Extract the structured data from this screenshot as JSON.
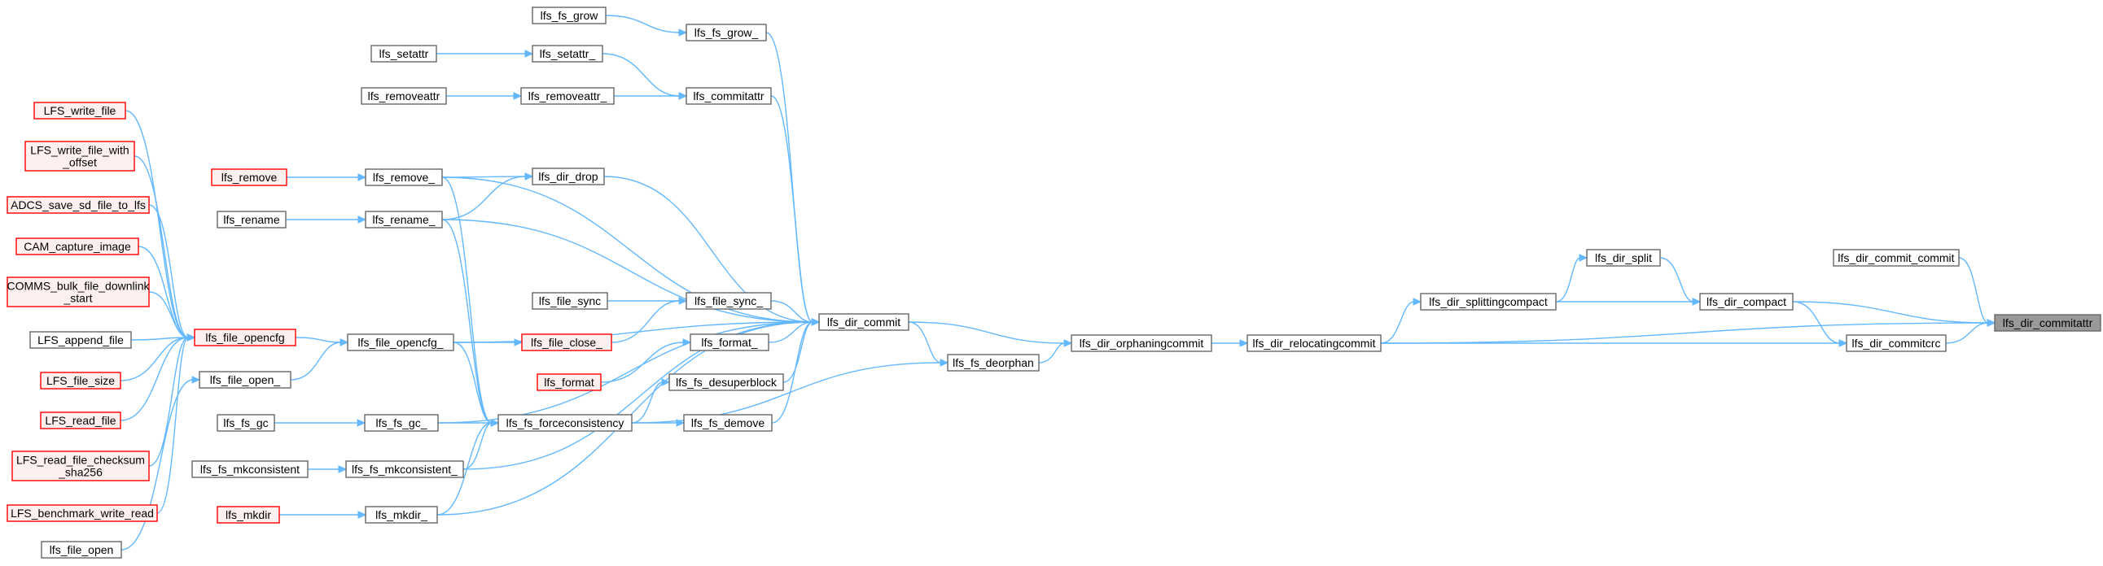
{
  "graph": {
    "title": "",
    "root": "lfs_dir_commitattr",
    "colors": {
      "edge": "#63b8ff",
      "node_border": "#666666",
      "red_border": "#ff0000",
      "red_fill": "#fff0f0",
      "selected_fill": "#999999"
    },
    "nodes": [
      {
        "id": "lfs_dir_commitattr",
        "lines": [
          "lfs_dir_commitattr"
        ],
        "style": "selected"
      },
      {
        "id": "lfs_dir_commit_commit",
        "lines": [
          "lfs_dir_commit_commit"
        ],
        "style": "normal"
      },
      {
        "id": "lfs_dir_compact",
        "lines": [
          "lfs_dir_compact"
        ],
        "style": "normal"
      },
      {
        "id": "lfs_dir_commitcrc",
        "lines": [
          "lfs_dir_commitcrc"
        ],
        "style": "normal"
      },
      {
        "id": "lfs_dir_split",
        "lines": [
          "lfs_dir_split"
        ],
        "style": "normal"
      },
      {
        "id": "lfs_dir_splittingcompact",
        "lines": [
          "lfs_dir_splittingcompact"
        ],
        "style": "normal"
      },
      {
        "id": "lfs_dir_relocatingcommit",
        "lines": [
          "lfs_dir_relocatingcommit"
        ],
        "style": "normal"
      },
      {
        "id": "lfs_dir_orphaningcommit",
        "lines": [
          "lfs_dir_orphaningcommit"
        ],
        "style": "normal"
      },
      {
        "id": "lfs_dir_commit",
        "lines": [
          "lfs_dir_commit"
        ],
        "style": "normal"
      },
      {
        "id": "lfs_fs_deorphan",
        "lines": [
          "lfs_fs_deorphan"
        ],
        "style": "normal"
      },
      {
        "id": "lfs_fs_grow_",
        "lines": [
          "lfs_fs_grow_"
        ],
        "style": "normal"
      },
      {
        "id": "lfs_fs_grow",
        "lines": [
          "lfs_fs_grow"
        ],
        "style": "normal"
      },
      {
        "id": "lfs_commitattr",
        "lines": [
          "lfs_commitattr"
        ],
        "style": "normal"
      },
      {
        "id": "lfs_setattr_",
        "lines": [
          "lfs_setattr_"
        ],
        "style": "normal"
      },
      {
        "id": "lfs_setattr",
        "lines": [
          "lfs_setattr"
        ],
        "style": "normal"
      },
      {
        "id": "lfs_removeattr_",
        "lines": [
          "lfs_removeattr_"
        ],
        "style": "normal"
      },
      {
        "id": "lfs_removeattr",
        "lines": [
          "lfs_removeattr"
        ],
        "style": "normal"
      },
      {
        "id": "lfs_dir_drop",
        "lines": [
          "lfs_dir_drop"
        ],
        "style": "normal"
      },
      {
        "id": "lfs_remove_",
        "lines": [
          "lfs_remove_"
        ],
        "style": "normal"
      },
      {
        "id": "lfs_remove",
        "lines": [
          "lfs_remove"
        ],
        "style": "red"
      },
      {
        "id": "lfs_rename_",
        "lines": [
          "lfs_rename_"
        ],
        "style": "normal"
      },
      {
        "id": "lfs_rename",
        "lines": [
          "lfs_rename"
        ],
        "style": "normal"
      },
      {
        "id": "lfs_file_sync_",
        "lines": [
          "lfs_file_sync_"
        ],
        "style": "normal"
      },
      {
        "id": "lfs_file_sync",
        "lines": [
          "lfs_file_sync"
        ],
        "style": "normal"
      },
      {
        "id": "lfs_file_close_",
        "lines": [
          "lfs_file_close_"
        ],
        "style": "red"
      },
      {
        "id": "lfs_format_",
        "lines": [
          "lfs_format_"
        ],
        "style": "normal"
      },
      {
        "id": "lfs_format",
        "lines": [
          "lfs_format"
        ],
        "style": "red"
      },
      {
        "id": "lfs_fs_desuperblock",
        "lines": [
          "lfs_fs_desuperblock"
        ],
        "style": "normal"
      },
      {
        "id": "lfs_fs_demove",
        "lines": [
          "lfs_fs_demove"
        ],
        "style": "normal"
      },
      {
        "id": "lfs_fs_forceconsistency",
        "lines": [
          "lfs_fs_forceconsistency"
        ],
        "style": "normal"
      },
      {
        "id": "lfs_fs_gc_",
        "lines": [
          "lfs_fs_gc_"
        ],
        "style": "normal"
      },
      {
        "id": "lfs_fs_gc",
        "lines": [
          "lfs_fs_gc"
        ],
        "style": "normal"
      },
      {
        "id": "lfs_fs_mkconsistent_",
        "lines": [
          "lfs_fs_mkconsistent_"
        ],
        "style": "normal"
      },
      {
        "id": "lfs_fs_mkconsistent",
        "lines": [
          "lfs_fs_mkconsistent"
        ],
        "style": "normal"
      },
      {
        "id": "lfs_mkdir_",
        "lines": [
          "lfs_mkdir_"
        ],
        "style": "normal"
      },
      {
        "id": "lfs_mkdir",
        "lines": [
          "lfs_mkdir"
        ],
        "style": "red"
      },
      {
        "id": "lfs_file_opencfg_",
        "lines": [
          "lfs_file_opencfg_"
        ],
        "style": "normal"
      },
      {
        "id": "lfs_file_opencfg",
        "lines": [
          "lfs_file_opencfg"
        ],
        "style": "red"
      },
      {
        "id": "lfs_file_open_",
        "lines": [
          "lfs_file_open_"
        ],
        "style": "normal"
      },
      {
        "id": "lfs_file_open",
        "lines": [
          "lfs_file_open"
        ],
        "style": "normal"
      },
      {
        "id": "LFS_write_file",
        "lines": [
          "LFS_write_file"
        ],
        "style": "red"
      },
      {
        "id": "LFS_write_file_with_offset",
        "lines": [
          "LFS_write_file_with",
          "_offset"
        ],
        "style": "red"
      },
      {
        "id": "ADCS_save_sd_file_to_lfs",
        "lines": [
          "ADCS_save_sd_file_to_lfs"
        ],
        "style": "red"
      },
      {
        "id": "CAM_capture_image",
        "lines": [
          "CAM_capture_image"
        ],
        "style": "red"
      },
      {
        "id": "COMMS_bulk_file_downlink_start",
        "lines": [
          "COMMS_bulk_file_downlink",
          "_start"
        ],
        "style": "red"
      },
      {
        "id": "LFS_append_file",
        "lines": [
          "LFS_append_file"
        ],
        "style": "normal"
      },
      {
        "id": "LFS_file_size",
        "lines": [
          "LFS_file_size"
        ],
        "style": "red"
      },
      {
        "id": "LFS_read_file",
        "lines": [
          "LFS_read_file"
        ],
        "style": "red"
      },
      {
        "id": "LFS_read_file_checksum_sha256",
        "lines": [
          "LFS_read_file_checksum",
          "_sha256"
        ],
        "style": "red"
      },
      {
        "id": "LFS_benchmark_write_read",
        "lines": [
          "LFS_benchmark_write_read"
        ],
        "style": "red"
      }
    ],
    "edges": [
      [
        "lfs_dir_commit_commit",
        "lfs_dir_commitattr"
      ],
      [
        "lfs_dir_compact",
        "lfs_dir_commitattr"
      ],
      [
        "lfs_dir_commitcrc",
        "lfs_dir_commitattr"
      ],
      [
        "lfs_dir_relocatingcommit",
        "lfs_dir_commitattr"
      ],
      [
        "lfs_dir_split",
        "lfs_dir_compact"
      ],
      [
        "lfs_dir_splittingcompact",
        "lfs_dir_compact"
      ],
      [
        "lfs_dir_compact",
        "lfs_dir_commitcrc"
      ],
      [
        "lfs_dir_relocatingcommit",
        "lfs_dir_commitcrc"
      ],
      [
        "lfs_dir_splittingcompact",
        "lfs_dir_split"
      ],
      [
        "lfs_dir_relocatingcommit",
        "lfs_dir_splittingcompact"
      ],
      [
        "lfs_dir_orphaningcommit",
        "lfs_dir_relocatingcommit"
      ],
      [
        "lfs_dir_commit",
        "lfs_dir_orphaningcommit"
      ],
      [
        "lfs_fs_deorphan",
        "lfs_dir_orphaningcommit"
      ],
      [
        "lfs_dir_commit",
        "lfs_fs_deorphan"
      ],
      [
        "lfs_fs_forceconsistency",
        "lfs_fs_deorphan"
      ],
      [
        "lfs_fs_grow_",
        "lfs_dir_commit"
      ],
      [
        "lfs_commitattr",
        "lfs_dir_commit"
      ],
      [
        "lfs_dir_drop",
        "lfs_dir_commit"
      ],
      [
        "lfs_remove_",
        "lfs_dir_commit"
      ],
      [
        "lfs_rename_",
        "lfs_dir_commit"
      ],
      [
        "lfs_file_opencfg_",
        "lfs_dir_commit"
      ],
      [
        "lfs_file_sync_",
        "lfs_dir_commit"
      ],
      [
        "lfs_format_",
        "lfs_dir_commit"
      ],
      [
        "lfs_fs_desuperblock",
        "lfs_dir_commit"
      ],
      [
        "lfs_fs_demove",
        "lfs_dir_commit"
      ],
      [
        "lfs_fs_gc_",
        "lfs_dir_commit"
      ],
      [
        "lfs_fs_mkconsistent_",
        "lfs_dir_commit"
      ],
      [
        "lfs_mkdir_",
        "lfs_dir_commit"
      ],
      [
        "lfs_fs_grow",
        "lfs_fs_grow_"
      ],
      [
        "lfs_setattr_",
        "lfs_commitattr"
      ],
      [
        "lfs_removeattr_",
        "lfs_commitattr"
      ],
      [
        "lfs_setattr",
        "lfs_setattr_"
      ],
      [
        "lfs_removeattr",
        "lfs_removeattr_"
      ],
      [
        "lfs_remove_",
        "lfs_dir_drop"
      ],
      [
        "lfs_rename_",
        "lfs_dir_drop"
      ],
      [
        "lfs_remove",
        "lfs_remove_"
      ],
      [
        "lfs_rename",
        "lfs_rename_"
      ],
      [
        "lfs_file_sync",
        "lfs_file_sync_"
      ],
      [
        "lfs_file_close_",
        "lfs_file_sync_"
      ],
      [
        "lfs_format",
        "lfs_format_"
      ],
      [
        "lfs_fs_forceconsistency",
        "lfs_fs_desuperblock"
      ],
      [
        "lfs_fs_forceconsistency",
        "lfs_fs_demove"
      ],
      [
        "lfs_remove_",
        "lfs_fs_forceconsistency"
      ],
      [
        "lfs_rename_",
        "lfs_fs_forceconsistency"
      ],
      [
        "lfs_file_opencfg_",
        "lfs_fs_forceconsistency"
      ],
      [
        "lfs_fs_gc_",
        "lfs_fs_forceconsistency"
      ],
      [
        "lfs_fs_mkconsistent_",
        "lfs_fs_forceconsistency"
      ],
      [
        "lfs_mkdir_",
        "lfs_fs_forceconsistency"
      ],
      [
        "lfs_file_opencfg_",
        "lfs_file_close_"
      ],
      [
        "lfs_fs_gc",
        "lfs_fs_gc_"
      ],
      [
        "lfs_fs_mkconsistent",
        "lfs_fs_mkconsistent_"
      ],
      [
        "lfs_mkdir",
        "lfs_mkdir_"
      ],
      [
        "lfs_file_opencfg",
        "lfs_file_opencfg_"
      ],
      [
        "lfs_file_open_",
        "lfs_file_opencfg_"
      ],
      [
        "lfs_file_open",
        "lfs_file_open_"
      ],
      [
        "LFS_write_file",
        "lfs_file_opencfg"
      ],
      [
        "LFS_write_file_with_offset",
        "lfs_file_opencfg"
      ],
      [
        "ADCS_save_sd_file_to_lfs",
        "lfs_file_opencfg"
      ],
      [
        "CAM_capture_image",
        "lfs_file_opencfg"
      ],
      [
        "COMMS_bulk_file_downlink_start",
        "lfs_file_opencfg"
      ],
      [
        "LFS_append_file",
        "lfs_file_opencfg"
      ],
      [
        "LFS_file_size",
        "lfs_file_opencfg"
      ],
      [
        "LFS_read_file",
        "lfs_file_opencfg"
      ],
      [
        "LFS_read_file_checksum_sha256",
        "lfs_file_opencfg"
      ],
      [
        "LFS_benchmark_write_read",
        "lfs_file_opencfg"
      ]
    ]
  }
}
